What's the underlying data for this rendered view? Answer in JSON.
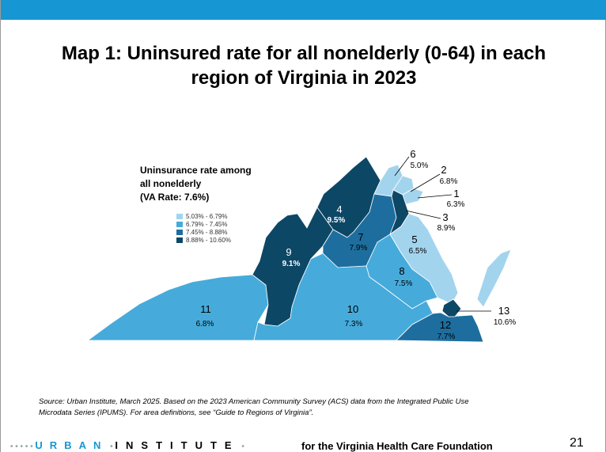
{
  "header": {
    "title_line1": "Map 1: Uninsured rate for all nonelderly (0-64) in each",
    "title_line2": "region of Virginia in 2023"
  },
  "legend": {
    "title_line1": "Uninsurance rate among",
    "title_line2": "all nonelderly",
    "title_line3": "(VA Rate: 7.6%)",
    "items": [
      {
        "label": "5.03% - 6.79%",
        "color": "#a3d4ee"
      },
      {
        "label": "6.79% - 7.45%",
        "color": "#46abdb"
      },
      {
        "label": "7.45% - 8.88%",
        "color": "#1d6e9f"
      },
      {
        "label": "8.88% - 10.60%",
        "color": "#0d4766"
      }
    ]
  },
  "regions": [
    {
      "id": "1",
      "rate": "6.3%",
      "color": "#a3d4ee"
    },
    {
      "id": "2",
      "rate": "6.8%",
      "color": "#a3d4ee"
    },
    {
      "id": "3",
      "rate": "8.9%",
      "color": "#0d4766"
    },
    {
      "id": "4",
      "rate": "9.5%",
      "color": "#0d4766"
    },
    {
      "id": "5",
      "rate": "6.5%",
      "color": "#a3d4ee"
    },
    {
      "id": "6",
      "rate": "5.0%",
      "color": "#a3d4ee"
    },
    {
      "id": "7",
      "rate": "7.9%",
      "color": "#1d6e9f"
    },
    {
      "id": "8",
      "rate": "7.5%",
      "color": "#46abdb"
    },
    {
      "id": "9",
      "rate": "9.1%",
      "color": "#0d4766"
    },
    {
      "id": "10",
      "rate": "7.3%",
      "color": "#46abdb"
    },
    {
      "id": "11",
      "rate": "6.8%",
      "color": "#46abdb"
    },
    {
      "id": "12",
      "rate": "7.7%",
      "color": "#1d6e9f"
    },
    {
      "id": "13",
      "rate": "10.6%",
      "color": "#0d4766"
    }
  ],
  "source": {
    "line1": "Source: Urban Institute, March 2025. Based on the 2023 American Community Survey (ACS) data from the Integrated Public Use",
    "line2": "Microdata Series (IPUMS). For area definitions, see “Guide to Regions of Virginia”."
  },
  "footer": {
    "urban": "URBAN",
    "institute": "INSTITUTE",
    "tagline": "for the Virginia Health Care Foundation",
    "page_number": "21"
  },
  "colors": {
    "accent": "#1696d2"
  }
}
